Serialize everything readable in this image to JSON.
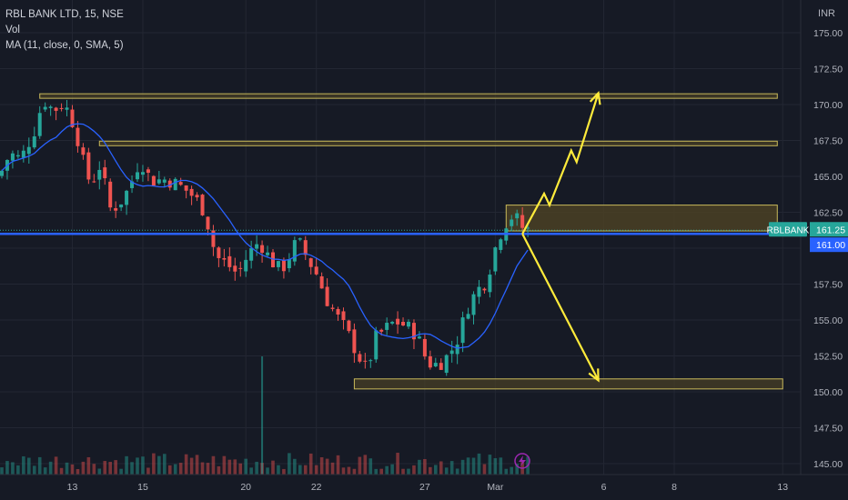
{
  "legend": {
    "title": "RBL BANK LTD, 15, NSE",
    "vol": "Vol",
    "ma": "MA (11, close, 0, SMA, 5)"
  },
  "axis": {
    "currency": "INR"
  },
  "colors": {
    "background": "#161a25",
    "grid": "#232733",
    "axis_text": "#b2b5be",
    "up": "#26a69a",
    "down": "#ef5350",
    "ma": "#2962ff",
    "zone_fill": "#4a4125",
    "zone_border": "#c8b95a",
    "support_line": "#2962ff",
    "arrows": "#ffeb3b",
    "symbol_badge": "#26a69a",
    "price_badge": "#2962ff",
    "lightning_badge": "#9c27b0"
  },
  "chart_data": {
    "type": "candlestick",
    "symbol": "RBLBANK",
    "y_ticks": [
      "175.00",
      "172.50",
      "170.00",
      "167.50",
      "165.00",
      "162.50",
      "160.00",
      "157.50",
      "155.00",
      "152.50",
      "150.00",
      "147.50",
      "145.00"
    ],
    "ylim": [
      144.5,
      177
    ],
    "x_ticks": [
      {
        "label": "13",
        "index": 13
      },
      {
        "label": "15",
        "index": 26
      },
      {
        "label": "20",
        "index": 45
      },
      {
        "label": "22",
        "index": 58
      },
      {
        "label": "27",
        "index": 78
      },
      {
        "label": "Mar",
        "index": 91
      },
      {
        "label": "6",
        "index": 111
      },
      {
        "label": "8",
        "index": 124
      },
      {
        "label": "13",
        "index": 144
      }
    ],
    "price_path": [
      [
        0,
        165.0
      ],
      [
        2,
        166.6
      ],
      [
        4,
        166.2
      ],
      [
        7,
        168.6
      ],
      [
        8,
        170.4
      ],
      [
        10,
        169.6
      ],
      [
        12,
        170.1
      ],
      [
        14,
        168.4
      ],
      [
        16,
        165.2
      ],
      [
        17,
        164.5
      ],
      [
        19,
        166.1
      ],
      [
        20,
        162.7
      ],
      [
        22,
        163.0
      ],
      [
        24,
        164.2
      ],
      [
        26,
        166.2
      ],
      [
        28,
        164.7
      ],
      [
        31,
        164.8
      ],
      [
        33,
        164.4
      ],
      [
        35,
        163.9
      ],
      [
        37,
        163.1
      ],
      [
        38,
        162.4
      ],
      [
        40,
        159.4
      ],
      [
        42,
        158.9
      ],
      [
        44,
        158.2
      ],
      [
        46,
        159.6
      ],
      [
        48,
        160.5
      ],
      [
        50,
        159.2
      ],
      [
        52,
        158.4
      ],
      [
        54,
        159.8
      ],
      [
        55,
        160.6
      ],
      [
        57,
        159.2
      ],
      [
        59,
        157.9
      ],
      [
        60,
        156.7
      ],
      [
        62,
        155.4
      ],
      [
        64,
        154.3
      ],
      [
        66,
        152.7
      ],
      [
        68,
        151.3
      ],
      [
        69,
        153.6
      ],
      [
        71,
        154.3
      ],
      [
        73,
        154.9
      ],
      [
        75,
        154.6
      ],
      [
        77,
        154.0
      ],
      [
        79,
        152.0
      ],
      [
        81,
        151.9
      ],
      [
        83,
        152.6
      ],
      [
        85,
        154.0
      ],
      [
        86,
        155.6
      ],
      [
        88,
        157.0
      ],
      [
        90,
        157.8
      ],
      [
        91,
        159.5
      ],
      [
        93,
        161.6
      ],
      [
        95,
        162.4
      ],
      [
        96,
        161.6
      ],
      [
        97,
        161.3
      ]
    ],
    "candle_count": 98,
    "ma_period": 11,
    "zones": [
      {
        "from": 7,
        "to": 143,
        "low": 170.45,
        "high": 170.75
      },
      {
        "from": 18,
        "to": 143,
        "low": 167.15,
        "high": 167.45
      },
      {
        "from": 93,
        "to": 143,
        "low": 161.2,
        "high": 163.0
      },
      {
        "from": 65,
        "to": 144,
        "low": 150.2,
        "high": 150.9
      }
    ],
    "support_level": 161.0,
    "forecast_arrows": [
      {
        "direction": "up",
        "points": [
          [
            96,
            161.0
          ],
          [
            100,
            163.8
          ],
          [
            101,
            163.0
          ],
          [
            105,
            166.8
          ],
          [
            106,
            166.0
          ],
          [
            110,
            170.8
          ]
        ]
      },
      {
        "direction": "down",
        "points": [
          [
            96,
            161.0
          ],
          [
            110,
            150.8
          ]
        ]
      }
    ],
    "last_price": 161.25,
    "labels": {
      "symbol": "RBLBANK",
      "last_price": "161.25",
      "level": "161.00"
    }
  }
}
